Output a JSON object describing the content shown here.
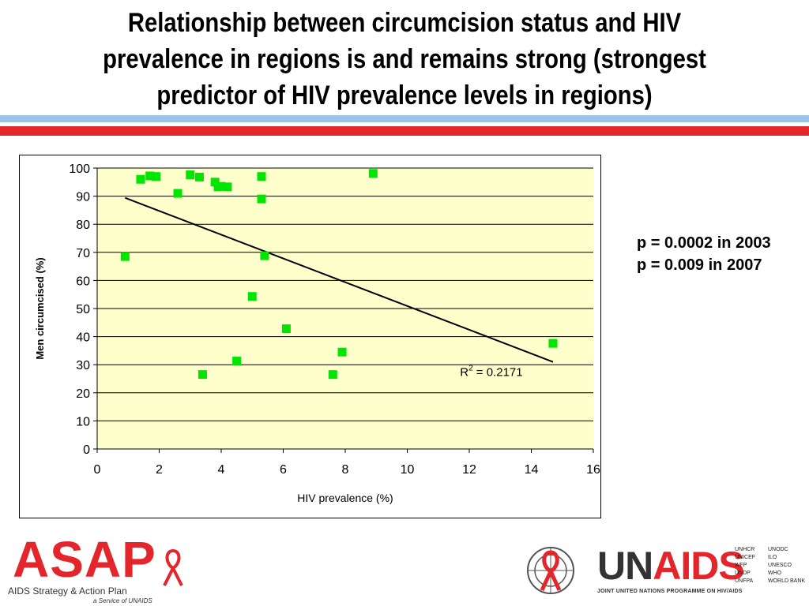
{
  "slide": {
    "title": "Relationship between circumcision status and HIV prevalence in regions is and remains strong (strongest predictor of HIV prevalence levels in regions)"
  },
  "stats": {
    "line1": "p = 0.0002 in 2003",
    "line2": "p = 0.009 in 2007"
  },
  "logos": {
    "asap_word": "ASAP",
    "asap_subtitle": "AIDS Strategy & Action Plan",
    "asap_service": "a Service of UNAIDS",
    "unaids_un": "UN",
    "unaids_aids": "AIDS",
    "unaids_subtitle": "JOINT UNITED NATIONS PROGRAMME ON HIV/AIDS",
    "agencies": [
      "UNHCR",
      "UNODC",
      "UNICEF",
      "ILO",
      "WFP",
      "UNESCO",
      "UNDP",
      "WHO",
      "UNFPA",
      "WORLD BANK"
    ]
  },
  "colors": {
    "plot_background": "#ffffcc",
    "marker": "#00e600",
    "trendline": "#000000",
    "band_blue": "#9cc3e6",
    "band_red": "#e3262b"
  },
  "chart_data": {
    "type": "scatter",
    "xlabel": "HIV prevalence (%)",
    "ylabel": "Men circumcised (%)",
    "xlim": [
      0,
      16
    ],
    "ylim": [
      0,
      100
    ],
    "x_ticks": [
      0,
      2,
      4,
      6,
      8,
      10,
      12,
      14,
      16
    ],
    "y_ticks": [
      0,
      10,
      20,
      30,
      40,
      50,
      60,
      70,
      80,
      90,
      100
    ],
    "grid": "horizontal",
    "legend": "none",
    "points": [
      {
        "x": 0.9,
        "y": 68.5
      },
      {
        "x": 1.4,
        "y": 96
      },
      {
        "x": 1.7,
        "y": 97.2
      },
      {
        "x": 1.9,
        "y": 97
      },
      {
        "x": 2.6,
        "y": 91
      },
      {
        "x": 3.0,
        "y": 97.6
      },
      {
        "x": 3.3,
        "y": 96.8
      },
      {
        "x": 3.4,
        "y": 26.5
      },
      {
        "x": 3.8,
        "y": 95
      },
      {
        "x": 3.9,
        "y": 93.3
      },
      {
        "x": 4.0,
        "y": 93.5
      },
      {
        "x": 4.2,
        "y": 93.3
      },
      {
        "x": 4.5,
        "y": 31.3
      },
      {
        "x": 5.0,
        "y": 54.3
      },
      {
        "x": 5.3,
        "y": 97
      },
      {
        "x": 5.3,
        "y": 89
      },
      {
        "x": 5.4,
        "y": 68.8
      },
      {
        "x": 6.1,
        "y": 42.8
      },
      {
        "x": 7.6,
        "y": 26.5
      },
      {
        "x": 7.9,
        "y": 34.5
      },
      {
        "x": 8.9,
        "y": 98.1
      },
      {
        "x": 14.7,
        "y": 37.6
      }
    ],
    "trendline": {
      "type": "linear",
      "from": {
        "x": 0.9,
        "y": 89.4
      },
      "to": {
        "x": 14.7,
        "y": 31
      },
      "r2_label": "R",
      "r2_sup": "2",
      "r2_value": " = 0.2171",
      "r2_position": {
        "x": 11.7,
        "y": 26
      }
    }
  }
}
